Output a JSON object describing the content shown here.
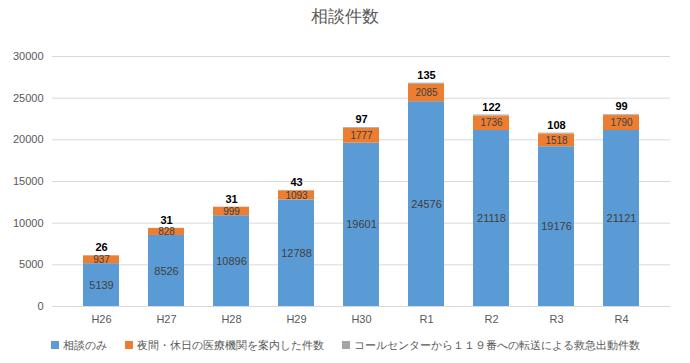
{
  "chart_data": {
    "type": "bar",
    "title": "相談件数",
    "stacked": true,
    "data_labels": true,
    "grid": true,
    "legend": "bottom",
    "categories": [
      "H26",
      "H27",
      "H28",
      "H29",
      "H30",
      "R1",
      "R2",
      "R3",
      "R4"
    ],
    "series": [
      {
        "name": "相談のみ",
        "color": "#5b9bd5",
        "values": [
          5139,
          8526,
          10896,
          12788,
          19601,
          24576,
          21118,
          19176,
          21121
        ]
      },
      {
        "name": "夜間・休日の医療機関を案内した件数",
        "color": "#ed7d31",
        "values": [
          937,
          828,
          999,
          1093,
          1777,
          2085,
          1736,
          1518,
          1790
        ]
      },
      {
        "name": "コールセンターから１１９番への転送による救急出動件数",
        "color": "#a5a5a5",
        "values": [
          26,
          31,
          31,
          43,
          97,
          135,
          122,
          108,
          99
        ]
      }
    ],
    "ylim": [
      0,
      30000
    ],
    "yticks": [
      0,
      5000,
      10000,
      15000,
      20000,
      25000,
      30000
    ]
  }
}
